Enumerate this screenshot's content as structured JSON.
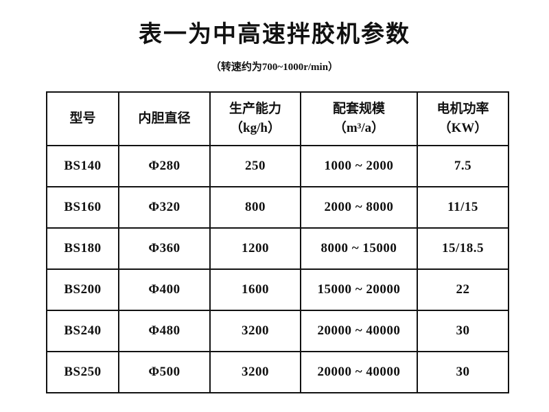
{
  "header": {
    "title": "表一为中高速拌胶机参数",
    "subtitle": "（转速约为700~1000r/min）"
  },
  "table": {
    "columns": [
      {
        "label": "型号"
      },
      {
        "label": "内胆直径"
      },
      {
        "label": "生产能力",
        "unit": "（kg/h）"
      },
      {
        "label": "配套规模",
        "unit": "（m³/a）"
      },
      {
        "label": "电机功率",
        "unit": "（KW）"
      }
    ],
    "rows": [
      [
        "BS140",
        "Φ280",
        "250",
        "1000 ~ 2000",
        "7.5"
      ],
      [
        "BS160",
        "Φ320",
        "800",
        "2000 ~ 8000",
        "11/15"
      ],
      [
        "BS180",
        "Φ360",
        "1200",
        "8000 ~ 15000",
        "15/18.5"
      ],
      [
        "BS200",
        "Φ400",
        "1600",
        "15000 ~ 20000",
        "22"
      ],
      [
        "BS240",
        "Φ480",
        "3200",
        "20000 ~ 40000",
        "30"
      ],
      [
        "BS250",
        "Φ500",
        "3200",
        "20000 ~ 40000",
        "30"
      ]
    ]
  }
}
